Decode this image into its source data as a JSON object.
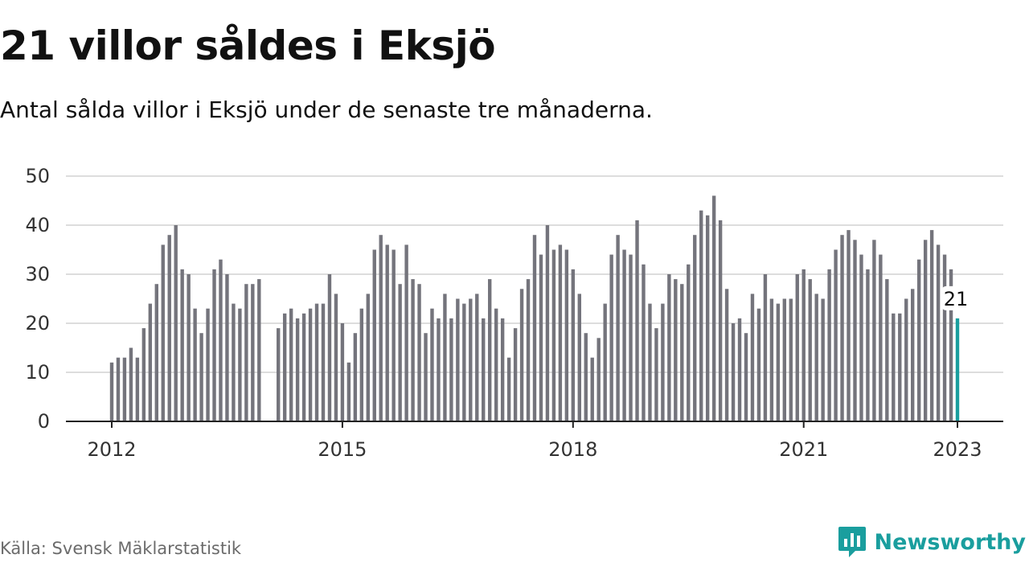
{
  "title": "21 villor såldes i Eksjö",
  "subtitle": "Antal sålda villor i Eksjö under de senaste tre månaderna.",
  "source": "Källa: Svensk Mäklarstatistik",
  "brand": {
    "name": "Newsworthy",
    "icon": "newsworthy-logo-icon"
  },
  "colors": {
    "bar": "#74747c",
    "highlight": "#1a9e9e",
    "grid": "#dddddd",
    "axis": "#222222",
    "text": "#111111",
    "muted": "#6b6b6b"
  },
  "chart_data": {
    "type": "bar",
    "title": "21 villor såldes i Eksjö",
    "subtitle": "Antal sålda villor i Eksjö under de senaste tre månaderna.",
    "xlabel": "",
    "ylabel": "",
    "ylim": [
      0,
      50
    ],
    "yticks": [
      0,
      10,
      20,
      30,
      40,
      50
    ],
    "grid": true,
    "x_start": "2012-01",
    "x_end": "2023-01",
    "xticks": [
      {
        "label": "2012",
        "date": "2012-01"
      },
      {
        "label": "2015",
        "date": "2015-01"
      },
      {
        "label": "2018",
        "date": "2018-01"
      },
      {
        "label": "2021",
        "date": "2021-01"
      },
      {
        "label": "2023",
        "date": "2023-01"
      }
    ],
    "series": [
      {
        "points": [
          [
            "2012-01",
            12
          ],
          [
            "2012-02",
            13
          ],
          [
            "2012-03",
            13
          ],
          [
            "2012-04",
            15
          ],
          [
            "2012-05",
            13
          ],
          [
            "2012-06",
            19
          ],
          [
            "2012-07",
            24
          ],
          [
            "2012-08",
            28
          ],
          [
            "2012-09",
            36
          ],
          [
            "2012-10",
            38
          ],
          [
            "2012-11",
            40
          ],
          [
            "2012-12",
            31
          ],
          [
            "2013-01",
            30
          ],
          [
            "2013-02",
            23
          ],
          [
            "2013-03",
            18
          ],
          [
            "2013-04",
            23
          ],
          [
            "2013-05",
            31
          ],
          [
            "2013-06",
            33
          ],
          [
            "2013-07",
            30
          ],
          [
            "2013-08",
            24
          ],
          [
            "2013-09",
            23
          ],
          [
            "2013-10",
            28
          ],
          [
            "2013-11",
            28
          ],
          [
            "2013-12",
            29
          ],
          [
            "2014-03",
            19
          ],
          [
            "2014-04",
            22
          ],
          [
            "2014-05",
            23
          ],
          [
            "2014-06",
            21
          ],
          [
            "2014-07",
            22
          ],
          [
            "2014-08",
            23
          ],
          [
            "2014-09",
            24
          ],
          [
            "2014-10",
            24
          ],
          [
            "2014-11",
            30
          ],
          [
            "2014-12",
            26
          ],
          [
            "2015-01",
            20
          ],
          [
            "2015-02",
            12
          ],
          [
            "2015-03",
            18
          ],
          [
            "2015-04",
            23
          ],
          [
            "2015-05",
            26
          ],
          [
            "2015-06",
            35
          ],
          [
            "2015-07",
            38
          ],
          [
            "2015-08",
            36
          ],
          [
            "2015-09",
            35
          ],
          [
            "2015-10",
            28
          ],
          [
            "2015-11",
            36
          ],
          [
            "2015-12",
            29
          ],
          [
            "2016-01",
            28
          ],
          [
            "2016-02",
            18
          ],
          [
            "2016-03",
            23
          ],
          [
            "2016-04",
            21
          ],
          [
            "2016-05",
            26
          ],
          [
            "2016-06",
            21
          ],
          [
            "2016-07",
            25
          ],
          [
            "2016-08",
            24
          ],
          [
            "2016-09",
            25
          ],
          [
            "2016-10",
            26
          ],
          [
            "2016-11",
            21
          ],
          [
            "2016-12",
            29
          ],
          [
            "2017-01",
            23
          ],
          [
            "2017-02",
            21
          ],
          [
            "2017-03",
            13
          ],
          [
            "2017-04",
            19
          ],
          [
            "2017-05",
            27
          ],
          [
            "2017-06",
            29
          ],
          [
            "2017-07",
            38
          ],
          [
            "2017-08",
            34
          ],
          [
            "2017-09",
            40
          ],
          [
            "2017-10",
            35
          ],
          [
            "2017-11",
            36
          ],
          [
            "2017-12",
            35
          ],
          [
            "2018-01",
            31
          ],
          [
            "2018-02",
            26
          ],
          [
            "2018-03",
            18
          ],
          [
            "2018-04",
            13
          ],
          [
            "2018-05",
            17
          ],
          [
            "2018-06",
            24
          ],
          [
            "2018-07",
            34
          ],
          [
            "2018-08",
            38
          ],
          [
            "2018-09",
            35
          ],
          [
            "2018-10",
            34
          ],
          [
            "2018-11",
            41
          ],
          [
            "2018-12",
            32
          ],
          [
            "2019-01",
            24
          ],
          [
            "2019-02",
            19
          ],
          [
            "2019-03",
            24
          ],
          [
            "2019-04",
            30
          ],
          [
            "2019-05",
            29
          ],
          [
            "2019-06",
            28
          ],
          [
            "2019-07",
            32
          ],
          [
            "2019-08",
            38
          ],
          [
            "2019-09",
            43
          ],
          [
            "2019-10",
            42
          ],
          [
            "2019-11",
            46
          ],
          [
            "2019-12",
            41
          ],
          [
            "2020-01",
            27
          ],
          [
            "2020-02",
            20
          ],
          [
            "2020-03",
            21
          ],
          [
            "2020-04",
            18
          ],
          [
            "2020-05",
            26
          ],
          [
            "2020-06",
            23
          ],
          [
            "2020-07",
            30
          ],
          [
            "2020-08",
            25
          ],
          [
            "2020-09",
            24
          ],
          [
            "2020-10",
            25
          ],
          [
            "2020-11",
            25
          ],
          [
            "2020-12",
            30
          ],
          [
            "2021-01",
            31
          ],
          [
            "2021-02",
            29
          ],
          [
            "2021-03",
            26
          ],
          [
            "2021-04",
            25
          ],
          [
            "2021-05",
            31
          ],
          [
            "2021-06",
            35
          ],
          [
            "2021-07",
            38
          ],
          [
            "2021-08",
            39
          ],
          [
            "2021-09",
            37
          ],
          [
            "2021-10",
            34
          ],
          [
            "2021-11",
            31
          ],
          [
            "2021-12",
            37
          ],
          [
            "2022-01",
            34
          ],
          [
            "2022-02",
            29
          ],
          [
            "2022-03",
            22
          ],
          [
            "2022-04",
            22
          ],
          [
            "2022-05",
            25
          ],
          [
            "2022-06",
            27
          ],
          [
            "2022-07",
            33
          ],
          [
            "2022-08",
            37
          ],
          [
            "2022-09",
            39
          ],
          [
            "2022-10",
            36
          ],
          [
            "2022-11",
            34
          ],
          [
            "2022-12",
            31
          ],
          [
            "2023-01",
            21
          ]
        ],
        "highlight_last": true
      }
    ],
    "annotations": [
      {
        "date": "2023-01",
        "value": 21,
        "label": "21"
      }
    ]
  }
}
